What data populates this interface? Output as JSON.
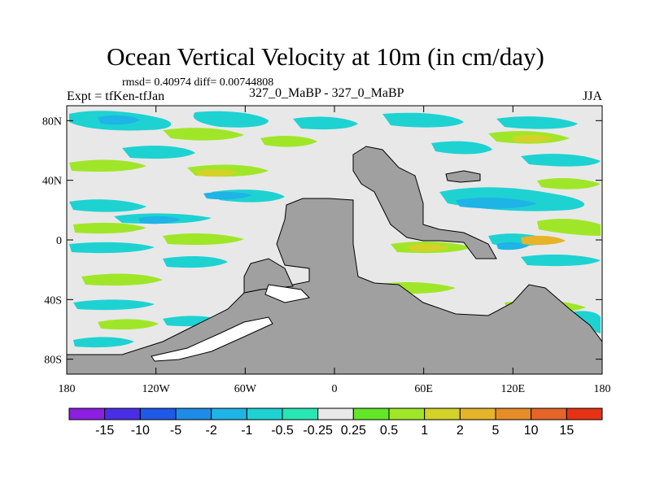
{
  "chart_data": {
    "type": "heatmap",
    "title": "Ocean Vertical Velocity at 10m (in cm/day)",
    "stats_text": "rmsd= 0.40974  diff= 0.00744808",
    "left_label": "Expt = tfKen-tfJan",
    "center_label": "327_0_MaBP - 327_0_MaBP",
    "season": "JJA",
    "x_ticks": [
      "180",
      "120W",
      "60W",
      "0",
      "60E",
      "120E",
      "180"
    ],
    "x_tick_values": [
      -180,
      -120,
      -60,
      0,
      60,
      120,
      180
    ],
    "y_ticks": [
      "80N",
      "40N",
      "0",
      "40S",
      "80S"
    ],
    "y_tick_values": [
      80,
      40,
      0,
      -40,
      -80
    ],
    "xlim": [
      -180,
      180
    ],
    "ylim": [
      -90,
      90
    ],
    "colorbar": {
      "labels": [
        "-15",
        "-10",
        "-5",
        "-2",
        "-1",
        "-0.5",
        "-0.25",
        "0.25",
        "0.5",
        "1",
        "2",
        "5",
        "10",
        "15"
      ],
      "colors": [
        "#8c1ee0",
        "#4a2ee6",
        "#1e5ae6",
        "#1e8ce6",
        "#1eb4e6",
        "#1ed2d2",
        "#28e6b4",
        "#e8e8e8",
        "#64e628",
        "#a0e628",
        "#d2d228",
        "#e6b428",
        "#e68c28",
        "#e66428",
        "#e63214"
      ]
    },
    "land_color": "#a0a0a0",
    "zero_band_color": "#e8e8e8"
  }
}
